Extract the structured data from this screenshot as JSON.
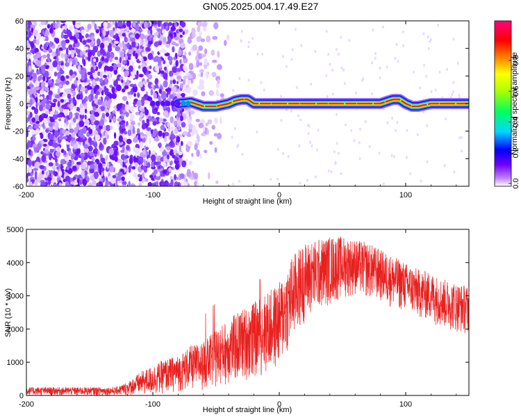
{
  "title": "GN05.2025.004.17.49.E27",
  "chart_data": [
    {
      "type": "heatmap",
      "xlabel": "Height of straight line (km)",
      "ylabel": "Frequency (Hz)",
      "xlim": [
        -200,
        150
      ],
      "ylim": [
        -60,
        60
      ],
      "x_ticks": [
        -200,
        -100,
        0,
        100
      ],
      "y_ticks": [
        -60,
        -40,
        -20,
        0,
        20,
        40,
        60
      ],
      "colorbar": {
        "label": "Normalized spectral amplitude",
        "range": [
          0,
          1
        ],
        "ticks": [
          "0.0",
          "0.2",
          "0.4",
          "0.6",
          "0.8"
        ],
        "colors": [
          "#ffffff",
          "#7b00ff",
          "#0000ff",
          "#00d8ff",
          "#00ff40",
          "#ffff00",
          "#ff8000",
          "#ff0000",
          "#ff007f"
        ]
      },
      "ridge": {
        "x": [
          -80,
          -70,
          -60,
          -50,
          -40,
          -35,
          -30,
          -25,
          -20,
          -10,
          0,
          10,
          20,
          30,
          40,
          50,
          60,
          70,
          80,
          90,
          95,
          100,
          105,
          110,
          120,
          130,
          140,
          150
        ],
        "y": [
          0,
          1,
          -2,
          -2,
          0,
          2,
          3,
          3,
          0,
          0,
          0,
          0,
          0,
          0,
          0,
          0,
          0,
          0,
          0,
          3,
          3,
          0,
          -2,
          -2,
          0,
          0,
          0,
          0
        ]
      },
      "noise_region": {
        "x_range": [
          -200,
          -75
        ],
        "sparse_until": -40
      }
    },
    {
      "type": "line",
      "xlabel": "Height of straight line (km)",
      "ylabel": "SNR (10 * v/v)",
      "xlim": [
        -200,
        150
      ],
      "ylim": [
        0,
        5000
      ],
      "x_ticks": [
        -200,
        -100,
        0,
        100
      ],
      "y_ticks": [
        0,
        1000,
        2000,
        3000,
        4000,
        5000
      ],
      "color": "#e8201e",
      "envelope": {
        "x": [
          -200,
          -130,
          -120,
          -110,
          -100,
          -90,
          -80,
          -70,
          -60,
          -50,
          -40,
          -30,
          -20,
          -10,
          0,
          10,
          20,
          30,
          40,
          50,
          60,
          70,
          80,
          90,
          100,
          110,
          120,
          130,
          140,
          150
        ],
        "lo": [
          0,
          0,
          0,
          0,
          0,
          50,
          100,
          150,
          150,
          200,
          300,
          400,
          500,
          600,
          800,
          1500,
          2200,
          2500,
          2700,
          2900,
          3000,
          2900,
          2800,
          2600,
          2500,
          2300,
          2200,
          2000,
          1900,
          1800
        ],
        "hi": [
          250,
          250,
          400,
          700,
          900,
          1100,
          1200,
          1500,
          1600,
          2000,
          2300,
          2600,
          2800,
          3100,
          3400,
          4200,
          4600,
          4700,
          4800,
          4800,
          4700,
          4600,
          4400,
          4200,
          4000,
          3800,
          3700,
          3500,
          3400,
          3300
        ]
      }
    }
  ]
}
